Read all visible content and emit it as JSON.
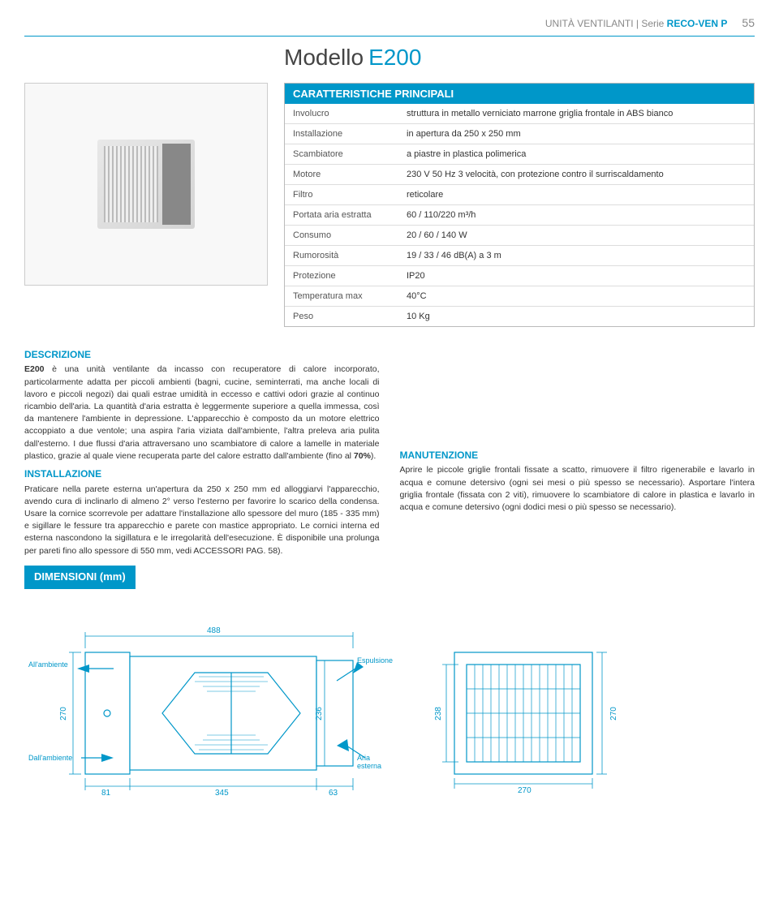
{
  "header": {
    "series_label": "UNITÀ VENTILANTI | Serie ",
    "series_name": "RECO-VEN P",
    "page_number": "55"
  },
  "title": {
    "prefix": "Modello",
    "model": "E200"
  },
  "spec_title": "CARATTERISTICHE PRINCIPALI",
  "specs": [
    {
      "label": "Involucro",
      "value": "struttura in metallo verniciato marrone griglia frontale in ABS bianco"
    },
    {
      "label": "Installazione",
      "value": "in apertura da 250 x 250 mm"
    },
    {
      "label": "Scambiatore",
      "value": "a piastre in plastica polimerica"
    },
    {
      "label": "Motore",
      "value": "230 V 50 Hz 3 velocità, con protezione contro il surriscaldamento"
    },
    {
      "label": "Filtro",
      "value": "reticolare"
    },
    {
      "label": "Portata aria estratta",
      "value": "60 / 110/220 m³/h"
    },
    {
      "label": "Consumo",
      "value": "20 / 60 / 140 W"
    },
    {
      "label": "Rumorosità",
      "value": "19 / 33 / 46 dB(A) a 3 m"
    },
    {
      "label": "Protezione",
      "value": "IP20"
    },
    {
      "label": "Temperatura max",
      "value": "40°C"
    },
    {
      "label": "Peso",
      "value": "10 Kg"
    }
  ],
  "desc": {
    "head": "DESCRIZIONE",
    "body_pre": "",
    "model_bold": "E200",
    "body": " è una unità ventilante da incasso con recuperatore di calore incorporato, particolarmente adatta per piccoli ambienti (bagni, cucine, seminterrati, ma anche locali di lavoro e piccoli negozi) dai quali estrae umidità in eccesso e cattivi odori grazie al continuo ricambio dell'aria. La quantità d'aria estratta è leggermente superiore a quella immessa, così da mantenere l'ambiente in depressione. L'apparecchio è composto da un motore elettrico accoppiato a due ventole; una aspira l'aria viziata dall'ambiente, l'altra preleva aria pulita dall'esterno. I due flussi d'aria attraversano uno scambiatore di calore a lamelle in materiale plastico, grazie al quale viene recuperata parte del calore estratto dall'ambiente (fino al ",
    "percent": "70%",
    "body_end": ")."
  },
  "install": {
    "head": "INSTALLAZIONE",
    "body": "Praticare nella parete esterna un'apertura da 250 x 250 mm ed alloggiarvi l'apparecchio, avendo cura di inclinarlo di almeno 2° verso l'esterno per favorire lo scarico della condensa. Usare la cornice scorrevole per adattare l'installazione allo spessore del muro (185 - 335 mm) e sigillare le fessure tra apparecchio e parete con mastice appropriato. Le cornici interna ed esterna nascondono la sigillatura e le irregolarità dell'esecuzione. È disponibile una prolunga per pareti fino allo spessore di 550 mm, vedi ACCESSORI PAG. 58)."
  },
  "maint": {
    "head": "MANUTENZIONE",
    "body": "Aprire le piccole griglie frontali fissate a scatto, rimuovere il filtro rigenerabile e lavarlo in acqua e comune detersivo (ogni sei mesi o più spesso se necessario). Asportare l'intera griglia frontale (fissata con 2 viti), rimuovere lo scambiatore di calore in plastica e lavarlo in acqua e comune detersivo (ogni dodici mesi o più spesso se necessario)."
  },
  "dim_title": "DIMENSIONI (mm)",
  "diagram": {
    "left": {
      "all_ambiente": "All'ambiente",
      "dall_ambiente": "Dall'ambiente",
      "espulsione": "Espulsione",
      "aria_esterna": "Aria esterna",
      "dim_488": "488",
      "dim_270": "270",
      "dim_236": "236",
      "dim_81": "81",
      "dim_345": "345",
      "dim_63": "63"
    },
    "right": {
      "dim_238": "238",
      "dim_270h": "270",
      "dim_270w": "270"
    }
  }
}
